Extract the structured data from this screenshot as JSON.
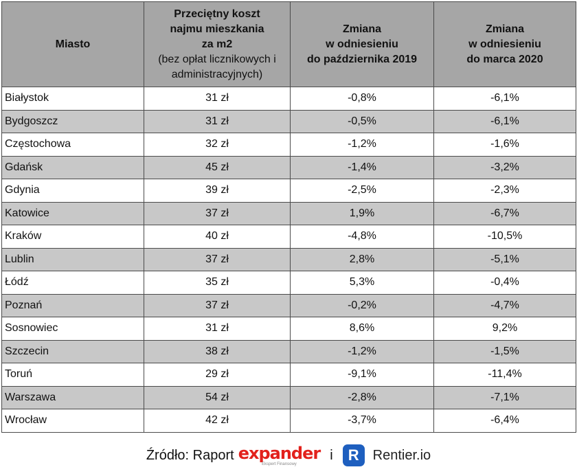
{
  "table": {
    "headers": {
      "city": "Miasto",
      "cost_title": [
        "Przeciętny koszt",
        "najmu mieszkania",
        "za m2"
      ],
      "cost_note": [
        "(bez opłat licznikowych i",
        "administracyjnych)"
      ],
      "change_oct": [
        "Zmiana",
        "w odniesieniu",
        "do października 2019"
      ],
      "change_mar": [
        "Zmiana",
        "w odniesieniu",
        "do marca 2020"
      ]
    },
    "rows": [
      {
        "city": "Białystok",
        "cost": "31 zł",
        "oct": "-0,8%",
        "mar": "-6,1%"
      },
      {
        "city": "Bydgoszcz",
        "cost": "31 zł",
        "oct": "-0,5%",
        "mar": "-6,1%"
      },
      {
        "city": "Częstochowa",
        "cost": "32 zł",
        "oct": "-1,2%",
        "mar": "-1,6%"
      },
      {
        "city": "Gdańsk",
        "cost": "45 zł",
        "oct": "-1,4%",
        "mar": "-3,2%"
      },
      {
        "city": "Gdynia",
        "cost": "39 zł",
        "oct": "-2,5%",
        "mar": "-2,3%"
      },
      {
        "city": "Katowice",
        "cost": "37 zł",
        "oct": "1,9%",
        "mar": "-6,7%"
      },
      {
        "city": "Kraków",
        "cost": "40 zł",
        "oct": "-4,8%",
        "mar": "-10,5%"
      },
      {
        "city": "Lublin",
        "cost": "37 zł",
        "oct": "2,8%",
        "mar": "-5,1%"
      },
      {
        "city": "Łódź",
        "cost": "35 zł",
        "oct": "5,3%",
        "mar": "-0,4%"
      },
      {
        "city": "Poznań",
        "cost": "37 zł",
        "oct": "-0,2%",
        "mar": "-4,7%"
      },
      {
        "city": "Sosnowiec",
        "cost": "31 zł",
        "oct": "8,6%",
        "mar": "9,2%"
      },
      {
        "city": "Szczecin",
        "cost": "38 zł",
        "oct": "-1,2%",
        "mar": "-1,5%"
      },
      {
        "city": "Toruń",
        "cost": "29 zł",
        "oct": "-9,1%",
        "mar": "-11,4%"
      },
      {
        "city": "Warszawa",
        "cost": "54 zł",
        "oct": "-2,8%",
        "mar": "-7,1%"
      },
      {
        "city": "Wrocław",
        "cost": "42 zł",
        "oct": "-3,7%",
        "mar": "-6,4%"
      }
    ]
  },
  "source": {
    "label": "Źródło: Raport",
    "expander_logo": "expander",
    "expander_tagline": "Ekspert Finansowy",
    "conjunction": "i",
    "rentier_icon_letter": "R",
    "rentier_name": "Rentier.io",
    "brand_red": "#e2211c",
    "brand_blue": "#1e5fbf"
  }
}
